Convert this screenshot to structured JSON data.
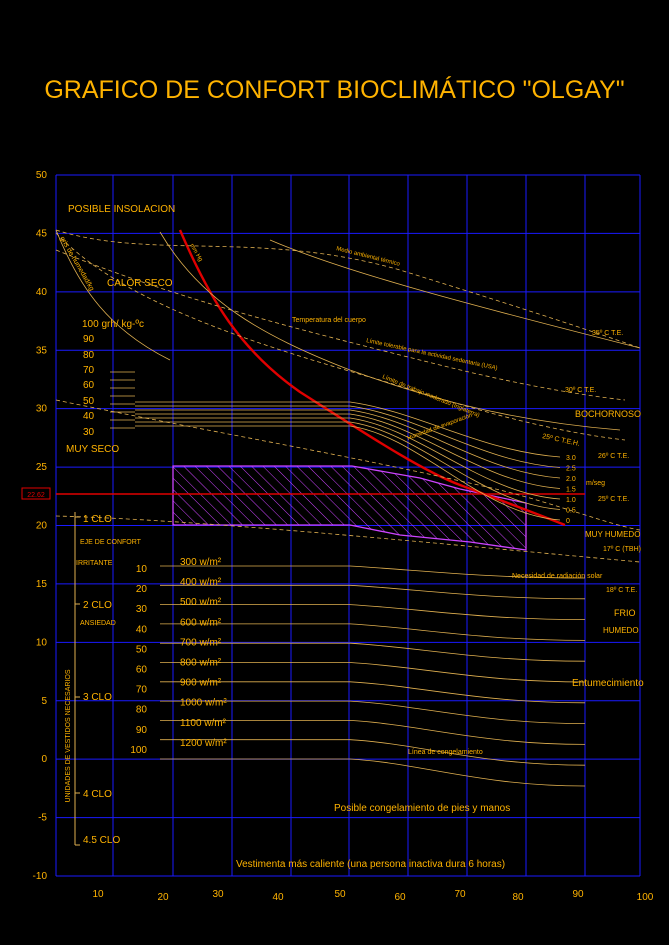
{
  "title": "GRAFICO DE CONFORT BIOCLIMÁTICO \"OLGAY\"",
  "colors": {
    "background": "#000000",
    "grid": "#1a1aff",
    "text": "#ffb300",
    "line": "#e0b050",
    "red": "#e00000",
    "comfort_zone": "#cc44ff"
  },
  "chart_data": {
    "type": "line",
    "title": "GRAFICO DE CONFORT BIOCLIMÁTICO \"OLGAY\"",
    "x_ticks": [
      "10",
      "20",
      "30",
      "40",
      "50",
      "60",
      "70",
      "80",
      "90",
      "100"
    ],
    "y_ticks": [
      "50",
      "45",
      "40",
      "35",
      "30",
      "25",
      "20",
      "15",
      "10",
      "5",
      "0",
      "-5",
      "-10"
    ],
    "xlim": [
      0,
      100
    ],
    "ylim": [
      -10,
      50
    ],
    "grid": true,
    "marker_value": "22.62",
    "left_labels": {
      "insolation": "POSIBLE INSOLACION",
      "heat_dry": "CALOR SECO",
      "very_dry": "MUY SECO",
      "moisture_axis": "gris de humedad/kg",
      "moisture_values": [
        "100  grh/ kg-ºc",
        "90",
        "80",
        "70",
        "60",
        "50",
        "40",
        "30"
      ]
    },
    "curve_labels": {
      "sea_mm": "mm Hg",
      "thermal_env": "Medio ambiental térmico",
      "body_temp": "Temperatura del cuerpo",
      "tolerable_limit": "Límite tolerable para la actividad sedentaria (USA)",
      "moderate_work": "Límite de trabajo moderado  (Inglaterra)",
      "humidity_effect": "Humedad de evaporación",
      "te_35": "35º C   T.E.",
      "te_30": "30º C     T.E.",
      "sultry": "BOCHORNOSO",
      "te_25": "25º C    T.E.H.",
      "te_26": "26º C   T.E.",
      "te_25b": "25º C   T.E.",
      "wind_unit": "m/seg",
      "wind_values": [
        "3.0",
        "2.5",
        "2.0",
        "1.5",
        "1.0",
        "0.5",
        "0"
      ],
      "very_humid": "MUY HUMEDO",
      "temp_17": "17º C  (TBH)",
      "solar_need": "Necesidad de radiación solar",
      "te_18": "18º C  T.E.",
      "cold": "FRIO",
      "humid": "HUMEDO",
      "numbness": "Entumecimiento",
      "freeze_line": "Línea de congelamiento",
      "freeze_hands": "Posible congelamiento de pies y manos",
      "warm_clothes": "Vestimenta más caliente (una persona inactiva dura 6 horas)"
    },
    "comfort_labels": {
      "axis": "EJE DE CONFORT",
      "irritating": "IRRITANTE",
      "anxiety": "ANSIEDAD",
      "clothing_axis": "UNIDADES DE VESTIDOS NECESARIOS"
    },
    "clo_levels": [
      "1  CLO",
      "2  CLO",
      "3  CLO",
      "4  CLO",
      "4.5  CLO"
    ],
    "radiation": {
      "index": [
        "10",
        "20",
        "30",
        "40",
        "50",
        "60",
        "70",
        "80",
        "90",
        "100"
      ],
      "watts": [
        "300 w/m²",
        "400 w/m²",
        "500 w/m²",
        "600 w/m²",
        "700 w/m²",
        "800 w/m²",
        "900 w/m²",
        "1000 w/m²",
        "1100 w/m²",
        "1200 w/m²"
      ]
    }
  }
}
